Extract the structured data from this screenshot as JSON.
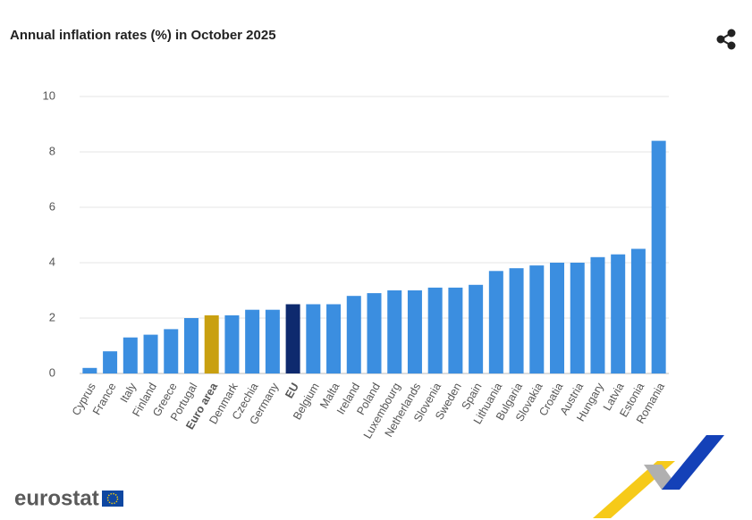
{
  "chart_data": {
    "type": "bar",
    "title": "Annual inflation rates (%) in October 2025",
    "categories": [
      "Cyprus",
      "France",
      "Italy",
      "Finland",
      "Greece",
      "Portugal",
      "Euro area",
      "Denmark",
      "Czechia",
      "Germany",
      "EU",
      "Belgium",
      "Malta",
      "Ireland",
      "Poland",
      "Luxembourg",
      "Netherlands",
      "Slovenia",
      "Sweden",
      "Spain",
      "Lithuania",
      "Bulgaria",
      "Slovakia",
      "Croatia",
      "Austria",
      "Hungary",
      "Latvia",
      "Estonia",
      "Romania"
    ],
    "values": [
      0.2,
      0.8,
      1.3,
      1.4,
      1.6,
      2.0,
      2.1,
      2.1,
      2.3,
      2.3,
      2.5,
      2.5,
      2.5,
      2.8,
      2.9,
      3.0,
      3.0,
      3.1,
      3.1,
      3.2,
      3.7,
      3.8,
      3.9,
      4.0,
      4.0,
      4.2,
      4.3,
      4.5,
      8.4
    ],
    "color": "#3b8ee0",
    "colors": [
      "#3b8ee0",
      "#3b8ee0",
      "#3b8ee0",
      "#3b8ee0",
      "#3b8ee0",
      "#3b8ee0",
      "#c9a010",
      "#3b8ee0",
      "#3b8ee0",
      "#3b8ee0",
      "#0e2a6e",
      "#3b8ee0",
      "#3b8ee0",
      "#3b8ee0",
      "#3b8ee0",
      "#3b8ee0",
      "#3b8ee0",
      "#3b8ee0",
      "#3b8ee0",
      "#3b8ee0",
      "#3b8ee0",
      "#3b8ee0",
      "#3b8ee0",
      "#3b8ee0",
      "#3b8ee0",
      "#3b8ee0",
      "#3b8ee0",
      "#3b8ee0",
      "#3b8ee0"
    ],
    "ylim": [
      0,
      10
    ],
    "yticks": [
      0,
      2,
      4,
      6,
      8,
      10
    ],
    "grid": true
  },
  "footer": {
    "logo": "eurostat"
  }
}
